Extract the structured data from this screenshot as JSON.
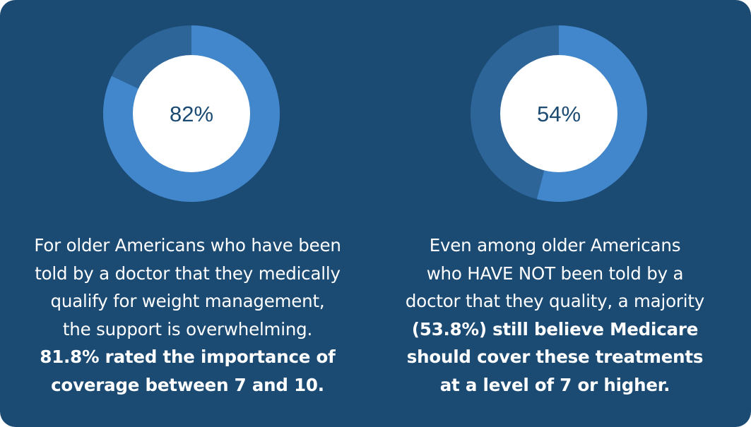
{
  "colors": {
    "background": "#1b4a73",
    "ring_primary": "#4286cc",
    "ring_secondary": "#2d6598",
    "center": "#ffffff",
    "label": "#1b4a73"
  },
  "chart_data": [
    {
      "type": "pie",
      "values": [
        82,
        18
      ],
      "center_label": "82%",
      "caption_lines": [
        "For older Americans who have been",
        "told by a doctor that they medically",
        "qualify for weight management,",
        "the support is overwhelming."
      ],
      "caption_bold_lines": [
        "81.8% rated the importance of",
        "coverage between 7 and 10."
      ]
    },
    {
      "type": "pie",
      "values": [
        54,
        46
      ],
      "center_label": "54%",
      "caption_lines": [
        "Even among older Americans",
        "who HAVE NOT been told by a",
        "doctor that they quality, a majority"
      ],
      "caption_bold_lines": [
        "(53.8%) still believe Medicare",
        "should cover these treatments",
        "at a level of 7 or higher."
      ]
    }
  ]
}
